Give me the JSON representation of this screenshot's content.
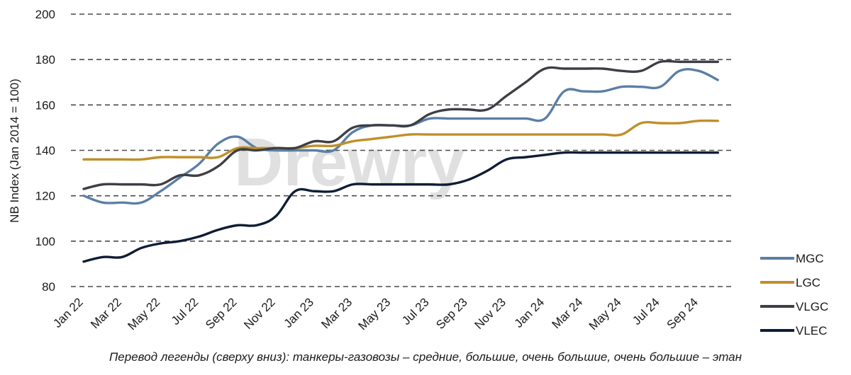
{
  "chart_data": {
    "type": "line",
    "ylabel": "NB Index (Jan 2014 = 100)",
    "ylim": [
      80,
      200
    ],
    "yticks": [
      80,
      100,
      120,
      140,
      160,
      180,
      200
    ],
    "grid": "horizontal dashed",
    "legend_position": "right",
    "watermark": "Drewry",
    "x_labels": [
      "Jan 22",
      "Mar 22",
      "May 22",
      "Jul 22",
      "Sep 22",
      "Nov 22",
      "Jan 23",
      "Mar 23",
      "May 23",
      "Jul 23",
      "Sep 23",
      "Nov 23",
      "Jan 24",
      "Mar 24",
      "May 24",
      "Jul 24",
      "Sep 24"
    ],
    "x": [
      "Jan 22",
      "Feb 22",
      "Mar 22",
      "Apr 22",
      "May 22",
      "Jun 22",
      "Jul 22",
      "Aug 22",
      "Sep 22",
      "Oct 22",
      "Nov 22",
      "Dec 22",
      "Jan 23",
      "Feb 23",
      "Mar 23",
      "Apr 23",
      "May 23",
      "Jun 23",
      "Jul 23",
      "Aug 23",
      "Sep 23",
      "Oct 23",
      "Nov 23",
      "Dec 23",
      "Jan 24",
      "Feb 24",
      "Mar 24",
      "Apr 24",
      "May 24",
      "Jun 24",
      "Jul 24",
      "Aug 24",
      "Sep 24",
      "Oct 24"
    ],
    "series": [
      {
        "name": "MGC",
        "color": "#5b7fa6",
        "values": [
          120,
          117,
          117,
          117,
          122,
          128,
          134,
          143,
          146,
          141,
          140,
          140,
          140,
          140,
          148,
          151,
          151,
          151,
          154,
          154,
          154,
          154,
          154,
          154,
          154,
          166,
          166,
          166,
          168,
          168,
          168,
          175,
          175,
          171
        ]
      },
      {
        "name": "LGC",
        "color": "#c08f2a",
        "values": [
          136,
          136,
          136,
          136,
          137,
          137,
          137,
          137,
          141,
          141,
          141,
          141,
          142,
          142,
          144,
          145,
          146,
          147,
          147,
          147,
          147,
          147,
          147,
          147,
          147,
          147,
          147,
          147,
          147,
          152,
          152,
          152,
          153,
          153
        ]
      },
      {
        "name": "VLGC",
        "color": "#3d3f45",
        "values": [
          123,
          125,
          125,
          125,
          125,
          129,
          129,
          133,
          140,
          140,
          141,
          141,
          144,
          144,
          150,
          151,
          151,
          151,
          156,
          158,
          158,
          158,
          164,
          170,
          176,
          176,
          176,
          176,
          175,
          175,
          179,
          179,
          179,
          179
        ]
      },
      {
        "name": "VLEC",
        "color": "#0f1d35",
        "values": [
          91,
          93,
          93,
          97,
          99,
          100,
          102,
          105,
          107,
          107,
          111,
          122,
          122,
          122,
          125,
          125,
          125,
          125,
          125,
          125,
          127,
          131,
          136,
          137,
          138,
          139,
          139,
          139,
          139,
          139,
          139,
          139,
          139,
          139
        ]
      }
    ]
  },
  "caption": "Перевод легенды (сверху вниз): танкеры-газовозы – средние, большие, очень большие, очень большие – этан"
}
